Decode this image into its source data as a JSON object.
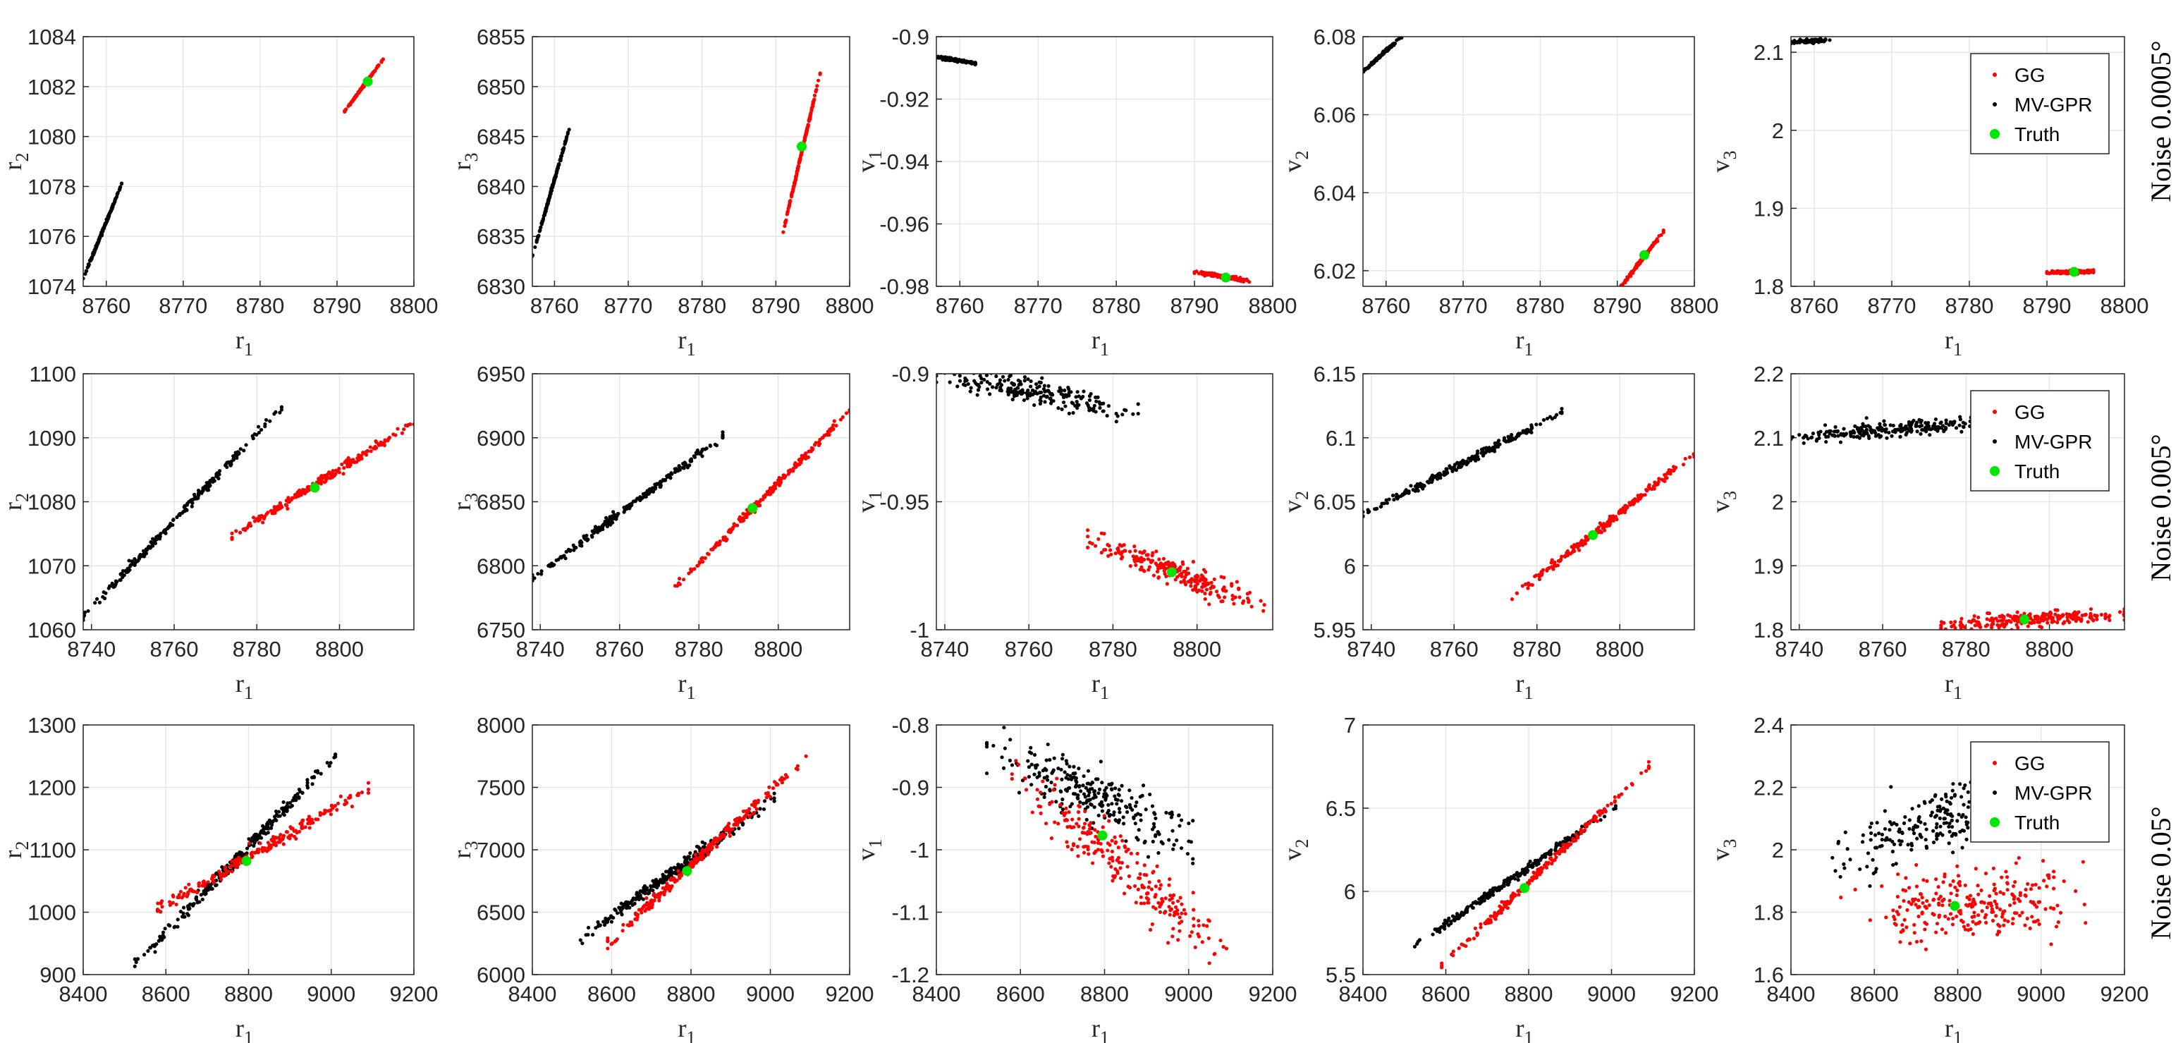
{
  "figure": {
    "row_labels": [
      "Noise 0.0005°",
      "Noise 0.005°",
      "Noise 0.05°"
    ],
    "legend_entries": [
      "GG",
      "MV-GPR",
      "Truth"
    ],
    "colors": {
      "GG": "#ff0000",
      "MV-GPR": "#000000",
      "Truth": "#00e600"
    }
  },
  "chart_data": [
    {
      "id": "r0c0",
      "type": "scatter",
      "row": 0,
      "col": 0,
      "xlabel": "r",
      "xsub": "1",
      "ylabel": "r",
      "ysub": "2",
      "xlim": [
        8757,
        8800
      ],
      "ylim": [
        1074,
        1084
      ],
      "xticks": [
        "8760",
        "8770",
        "8780",
        "8790",
        "8800"
      ],
      "yticks": [
        "1074",
        "1076",
        "1078",
        "1080",
        "1082",
        "1084"
      ],
      "series": [
        {
          "name": "GG",
          "x0": 8791,
          "y0": 1081.0,
          "x1": 8796,
          "y1": 1083.1,
          "n": 140,
          "spread": 0.02
        },
        {
          "name": "MV-GPR",
          "x0": 8757,
          "y0": 1074.3,
          "x1": 8762,
          "y1": 1078.1,
          "n": 160,
          "spread": 0.03
        }
      ],
      "truth": [
        8794,
        1082.2
      ]
    },
    {
      "id": "r0c1",
      "type": "scatter",
      "row": 0,
      "col": 1,
      "xlabel": "r",
      "xsub": "1",
      "ylabel": "r",
      "ysub": "3",
      "xlim": [
        8757,
        8800
      ],
      "ylim": [
        6830,
        6855
      ],
      "xticks": [
        "8760",
        "8770",
        "8780",
        "8790",
        "8800"
      ],
      "yticks": [
        "6830",
        "6835",
        "6840",
        "6845",
        "6850",
        "6855"
      ],
      "series": [
        {
          "name": "GG",
          "x0": 8791,
          "y0": 6835.5,
          "x1": 8796,
          "y1": 6851.3,
          "n": 170,
          "spread": 0.08
        },
        {
          "name": "MV-GPR",
          "x0": 8757,
          "y0": 6833,
          "x1": 8762,
          "y1": 6845.8,
          "n": 170,
          "spread": 0.08
        }
      ],
      "truth": [
        8793.5,
        6844
      ]
    },
    {
      "id": "r0c2",
      "type": "scatter",
      "row": 0,
      "col": 2,
      "xlabel": "r",
      "xsub": "1",
      "ylabel": "v",
      "ysub": "1",
      "xlim": [
        8757,
        8800
      ],
      "ylim": [
        -0.98,
        -0.9
      ],
      "xticks": [
        "8760",
        "8770",
        "8780",
        "8790",
        "8800"
      ],
      "yticks": [
        "-0.98",
        "-0.96",
        "-0.94",
        "-0.92",
        "-0.9"
      ],
      "series": [
        {
          "name": "GG",
          "x0": 8790,
          "y0": -0.9753,
          "x1": 8797,
          "y1": -0.9785,
          "n": 130,
          "spread": 0.0003
        },
        {
          "name": "MV-GPR",
          "x0": 8757,
          "y0": -0.9065,
          "x1": 8762,
          "y1": -0.9085,
          "n": 120,
          "spread": 0.0002
        }
      ],
      "truth": [
        8794,
        -0.9772
      ]
    },
    {
      "id": "r0c3",
      "type": "scatter",
      "row": 0,
      "col": 3,
      "xlabel": "r",
      "xsub": "1",
      "ylabel": "v",
      "ysub": "2",
      "xlim": [
        8757,
        8800
      ],
      "ylim": [
        6.016,
        6.08
      ],
      "xticks": [
        "8760",
        "8770",
        "8780",
        "8790",
        "8800"
      ],
      "yticks": [
        "6.02",
        "6.04",
        "6.06",
        "6.08"
      ],
      "series": [
        {
          "name": "GG",
          "x0": 8790.5,
          "y0": 6.016,
          "x1": 8796,
          "y1": 6.03,
          "n": 140,
          "spread": 0.0002
        },
        {
          "name": "MV-GPR",
          "x0": 8757,
          "y0": 6.071,
          "x1": 8762,
          "y1": 6.08,
          "n": 120,
          "spread": 0.0002
        }
      ],
      "truth": [
        8793.5,
        6.024
      ]
    },
    {
      "id": "r0c4",
      "type": "scatter",
      "row": 0,
      "col": 4,
      "xlabel": "r",
      "xsub": "1",
      "ylabel": "v",
      "ysub": "3",
      "xlim": [
        8757,
        8800
      ],
      "ylim": [
        1.8,
        2.12
      ],
      "xticks": [
        "8760",
        "8770",
        "8780",
        "8790",
        "8800"
      ],
      "yticks": [
        "1.8",
        "1.9",
        "2",
        "2.1"
      ],
      "series": [
        {
          "name": "GG",
          "x0": 8790,
          "y0": 1.8175,
          "x1": 8796,
          "y1": 1.8195,
          "n": 130,
          "spread": 0.001
        },
        {
          "name": "MV-GPR",
          "x0": 8757,
          "y0": 2.113,
          "x1": 8762,
          "y1": 2.116,
          "n": 110,
          "spread": 0.001
        }
      ],
      "truth": [
        8793.5,
        1.8185
      ],
      "legend": true
    },
    {
      "id": "r1c0",
      "type": "scatter",
      "row": 1,
      "col": 0,
      "xlabel": "r",
      "xsub": "1",
      "ylabel": "r",
      "ysub": "2",
      "xlim": [
        8738,
        8818
      ],
      "ylim": [
        1060,
        1100
      ],
      "xticks": [
        "8740",
        "8760",
        "8780",
        "8800"
      ],
      "yticks": [
        "1060",
        "1070",
        "1080",
        "1090",
        "1100"
      ],
      "series": [
        {
          "name": "GG",
          "x0": 8774,
          "y0": 1074.6,
          "x1": 8818,
          "y1": 1092.3,
          "n": 220,
          "spread": 0.35
        },
        {
          "name": "MV-GPR",
          "x0": 8738,
          "y0": 1062,
          "x1": 8786,
          "y1": 1094.7,
          "n": 240,
          "spread": 0.35
        }
      ],
      "truth": [
        8794,
        1082.2
      ]
    },
    {
      "id": "r1c1",
      "type": "scatter",
      "row": 1,
      "col": 1,
      "xlabel": "r",
      "xsub": "1",
      "ylabel": "r",
      "ysub": "3",
      "xlim": [
        8738,
        8818
      ],
      "ylim": [
        6750,
        6950
      ],
      "xticks": [
        "8740",
        "8760",
        "8780",
        "8800"
      ],
      "yticks": [
        "6750",
        "6800",
        "6850",
        "6900",
        "6950"
      ],
      "series": [
        {
          "name": "GG",
          "x0": 8774,
          "y0": 6783,
          "x1": 8818,
          "y1": 6921,
          "n": 220,
          "spread": 1.5
        },
        {
          "name": "MV-GPR",
          "x0": 8738,
          "y0": 6790,
          "x1": 8786,
          "y1": 6901,
          "n": 240,
          "spread": 1.5
        }
      ],
      "truth": [
        8793.5,
        6845
      ]
    },
    {
      "id": "r1c2",
      "type": "scatter",
      "row": 1,
      "col": 2,
      "xlabel": "r",
      "xsub": "1",
      "ylabel": "v",
      "ysub": "1",
      "xlim": [
        8738,
        8818
      ],
      "ylim": [
        -1.0,
        -0.9
      ],
      "xticks": [
        "8740",
        "8760",
        "8780",
        "8800"
      ],
      "yticks": [
        "-1",
        "-0.95",
        "-0.9"
      ],
      "series": [
        {
          "name": "GG",
          "x0": 8774,
          "y0": -0.965,
          "x1": 8818,
          "y1": -0.992,
          "n": 230,
          "spread": 0.0025
        },
        {
          "name": "MV-GPR",
          "x0": 8738,
          "y0": -0.9,
          "x1": 8786,
          "y1": -0.915,
          "n": 220,
          "spread": 0.0025
        }
      ],
      "truth": [
        8794,
        -0.9775
      ]
    },
    {
      "id": "r1c3",
      "type": "scatter",
      "row": 1,
      "col": 3,
      "xlabel": "r",
      "xsub": "1",
      "ylabel": "v",
      "ysub": "2",
      "xlim": [
        8738,
        8818
      ],
      "ylim": [
        5.95,
        6.15
      ],
      "xticks": [
        "8740",
        "8760",
        "8780",
        "8800"
      ],
      "yticks": [
        "5.95",
        "6",
        "6.05",
        "6.1",
        "6.15"
      ],
      "series": [
        {
          "name": "GG",
          "x0": 8774,
          "y0": 5.975,
          "x1": 8818,
          "y1": 6.087,
          "n": 220,
          "spread": 0.0015
        },
        {
          "name": "MV-GPR",
          "x0": 8738,
          "y0": 6.04,
          "x1": 8786,
          "y1": 6.12,
          "n": 230,
          "spread": 0.0015
        }
      ],
      "truth": [
        8793.5,
        6.024
      ]
    },
    {
      "id": "r1c4",
      "type": "scatter",
      "row": 1,
      "col": 4,
      "xlabel": "r",
      "xsub": "1",
      "ylabel": "v",
      "ysub": "3",
      "xlim": [
        8738,
        8818
      ],
      "ylim": [
        1.8,
        2.2
      ],
      "xticks": [
        "8740",
        "8760",
        "8780",
        "8800"
      ],
      "yticks": [
        "1.8",
        "1.9",
        "2",
        "2.1",
        "2.2"
      ],
      "series": [
        {
          "name": "GG",
          "x0": 8774,
          "y0": 1.808,
          "x1": 8818,
          "y1": 1.825,
          "n": 230,
          "spread": 0.005
        },
        {
          "name": "MV-GPR",
          "x0": 8738,
          "y0": 2.1,
          "x1": 8786,
          "y1": 2.125,
          "n": 230,
          "spread": 0.006
        }
      ],
      "truth": [
        8794,
        1.816
      ],
      "legend": true
    },
    {
      "id": "r2c0",
      "type": "scatter",
      "row": 2,
      "col": 0,
      "xlabel": "r",
      "xsub": "1",
      "ylabel": "r",
      "ysub": "2",
      "xlim": [
        8400,
        9200
      ],
      "ylim": [
        900,
        1300
      ],
      "xticks": [
        "8400",
        "8600",
        "8800",
        "9000",
        "9200"
      ],
      "yticks": [
        "900",
        "1000",
        "1100",
        "1200",
        "1300"
      ],
      "series": [
        {
          "name": "GG",
          "x0": 8580,
          "y0": 1005,
          "x1": 9090,
          "y1": 1198,
          "n": 220,
          "spread": 5
        },
        {
          "name": "MV-GPR",
          "x0": 8525,
          "y0": 915,
          "x1": 9010,
          "y1": 1250,
          "n": 260,
          "spread": 5
        }
      ],
      "truth": [
        8795,
        1082
      ]
    },
    {
      "id": "r2c1",
      "type": "scatter",
      "row": 2,
      "col": 1,
      "xlabel": "r",
      "xsub": "1",
      "ylabel": "r",
      "ysub": "3",
      "xlim": [
        8400,
        9200
      ],
      "ylim": [
        6000,
        8000
      ],
      "xticks": [
        "8400",
        "8600",
        "8800",
        "9000",
        "9200"
      ],
      "yticks": [
        "6000",
        "6500",
        "7000",
        "7500",
        "8000"
      ],
      "series": [
        {
          "name": "GG",
          "x0": 8590,
          "y0": 6250,
          "x1": 9090,
          "y1": 7740,
          "n": 230,
          "spread": 25
        },
        {
          "name": "MV-GPR",
          "x0": 8520,
          "y0": 6280,
          "x1": 9010,
          "y1": 7420,
          "n": 260,
          "spread": 25
        }
      ],
      "truth": [
        8790,
        6830
      ]
    },
    {
      "id": "r2c2",
      "type": "scatter",
      "row": 2,
      "col": 2,
      "xlabel": "r",
      "xsub": "1",
      "ylabel": "v",
      "ysub": "1",
      "xlim": [
        8400,
        9200
      ],
      "ylim": [
        -1.2,
        -0.8
      ],
      "xticks": [
        "8400",
        "8600",
        "8800",
        "9000",
        "9200"
      ],
      "yticks": [
        "-1.2",
        "-1.1",
        "-1",
        "-0.9",
        "-0.8"
      ],
      "series": [
        {
          "name": "GG",
          "x0": 8580,
          "y0": -0.88,
          "x1": 9090,
          "y1": -1.16,
          "n": 240,
          "spread": 0.022
        },
        {
          "name": "MV-GPR",
          "x0": 8520,
          "y0": -0.83,
          "x1": 9010,
          "y1": -0.99,
          "n": 260,
          "spread": 0.022
        }
      ],
      "truth": [
        8795,
        -0.977
      ]
    },
    {
      "id": "r2c3",
      "type": "scatter",
      "row": 2,
      "col": 3,
      "xlabel": "r",
      "xsub": "1",
      "ylabel": "v",
      "ysub": "2",
      "xlim": [
        8400,
        9200
      ],
      "ylim": [
        5.5,
        7
      ],
      "xticks": [
        "8400",
        "8600",
        "8800",
        "9000",
        "9200"
      ],
      "yticks": [
        "5.5",
        "6",
        "6.5",
        "7"
      ],
      "series": [
        {
          "name": "GG",
          "x0": 8590,
          "y0": 5.55,
          "x1": 9090,
          "y1": 6.75,
          "n": 230,
          "spread": 0.012
        },
        {
          "name": "MV-GPR",
          "x0": 8525,
          "y0": 5.67,
          "x1": 9010,
          "y1": 6.51,
          "n": 260,
          "spread": 0.012
        }
      ],
      "truth": [
        8790,
        6.02
      ]
    },
    {
      "id": "r2c4",
      "type": "scatter",
      "row": 2,
      "col": 4,
      "xlabel": "r",
      "xsub": "1",
      "ylabel": "v",
      "ysub": "3",
      "xlim": [
        8400,
        9200
      ],
      "ylim": [
        1.6,
        2.4
      ],
      "xticks": [
        "8400",
        "8600",
        "8800",
        "9000",
        "9200"
      ],
      "yticks": [
        "1.6",
        "1.8",
        "2",
        "2.2",
        "2.4"
      ],
      "series": [
        {
          "name": "GG",
          "x0": 8590,
          "y0": 1.8,
          "x1": 9090,
          "y1": 1.84,
          "n": 260,
          "spread": 0.06,
          "xjitter": 0.12
        },
        {
          "name": "MV-GPR",
          "x0": 8530,
          "y0": 1.98,
          "x1": 8990,
          "y1": 2.22,
          "n": 240,
          "spread": 0.05,
          "xjitter": 0.1
        }
      ],
      "truth": [
        8793,
        1.82
      ],
      "legend": true
    }
  ]
}
